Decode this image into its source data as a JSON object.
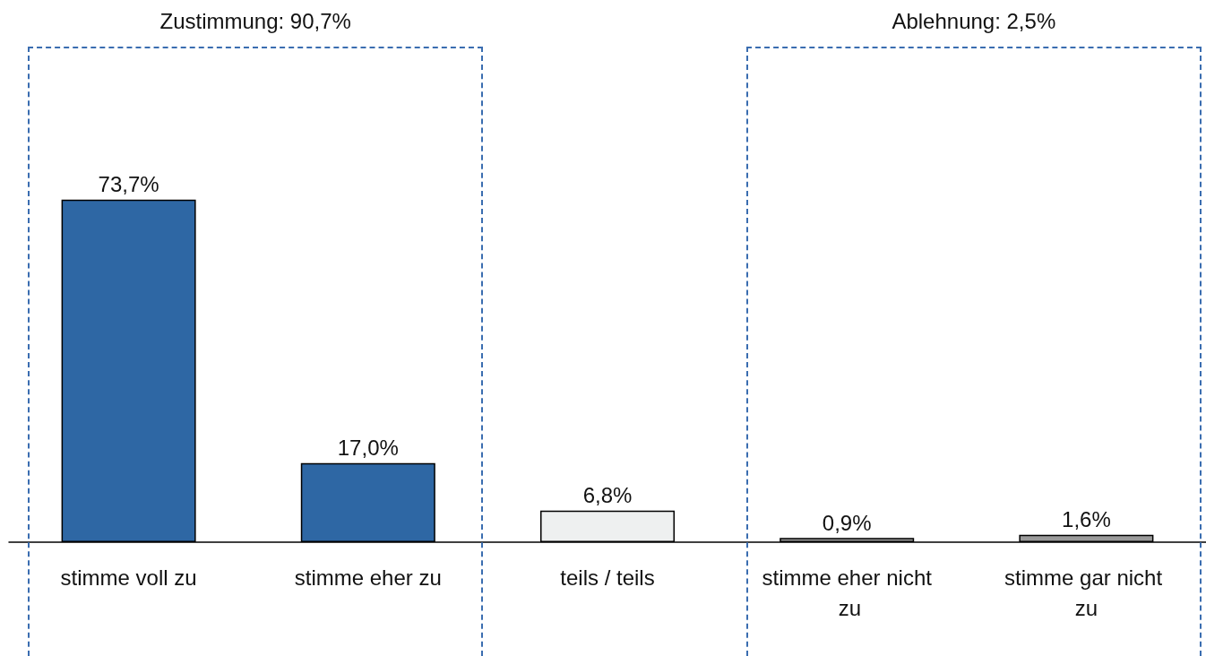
{
  "chart_data": {
    "type": "bar",
    "categories": [
      "stimme voll zu",
      "stimme eher zu",
      "teils / teils",
      "stimme eher nicht zu",
      "stimme gar nicht zu"
    ],
    "values": [
      73.7,
      17.0,
      6.8,
      0.9,
      1.6
    ],
    "colors": [
      "#2e67a4",
      "#2e67a4",
      "#eef0f0",
      "#9a9a9a",
      "#9a9a9a"
    ],
    "value_labels": [
      "73,7%",
      "17,0%",
      "6,8%",
      "0,9%",
      "1,6%"
    ],
    "annotations": [
      "Zustimmung: 90,7%",
      "Ablehnung: 2,5%"
    ]
  }
}
